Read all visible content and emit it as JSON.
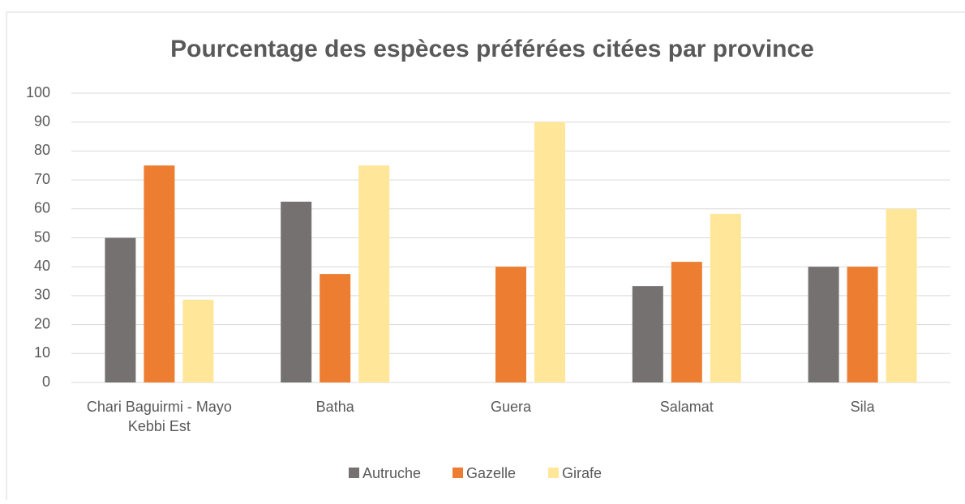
{
  "chart_data": {
    "type": "bar",
    "title": "Pourcentage des espèces préférées citées par province",
    "categories": [
      "Chari Baguirmi - Mayo Kebbi Est",
      "Batha",
      "Guera",
      "Salamat",
      "Sila"
    ],
    "series": [
      {
        "name": "Autruche",
        "color": "#767171",
        "values": [
          50,
          62.5,
          0,
          33.3,
          40
        ]
      },
      {
        "name": "Gazelle",
        "color": "#ed7d31",
        "values": [
          75,
          37.5,
          40,
          41.7,
          40
        ]
      },
      {
        "name": "Girafe",
        "color": "#ffe699",
        "values": [
          28.6,
          75,
          90,
          58.3,
          60
        ]
      }
    ],
    "ylim": [
      0,
      100
    ],
    "yticks": [
      0,
      10,
      20,
      30,
      40,
      50,
      60,
      70,
      80,
      90,
      100
    ],
    "grid": true,
    "legend": "bottom"
  }
}
